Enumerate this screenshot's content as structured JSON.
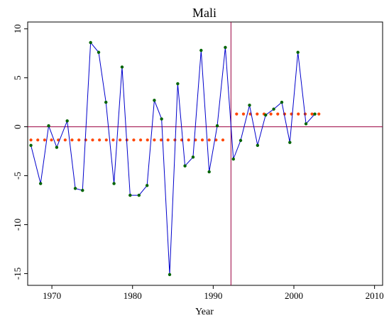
{
  "chart_data": {
    "type": "line",
    "title": "Mali",
    "xlabel": "Year",
    "ylabel": "",
    "xlim": [
      1967,
      2011
    ],
    "ylim": [
      -16.2,
      10.7
    ],
    "x_ticks": [
      1970,
      1980,
      1990,
      2000,
      2010
    ],
    "y_ticks": [
      10,
      5,
      0,
      -5,
      -10,
      -15
    ],
    "x_tick_labels": [
      "1970",
      "1980",
      "1990",
      "2000",
      "2010"
    ],
    "y_tick_labels": [
      "10",
      "5",
      "0",
      "-5",
      "-10",
      "-15"
    ],
    "grid": false,
    "reference_lines": {
      "y": 0,
      "x": 1992.2
    },
    "colors": {
      "series_line": "#0000cc",
      "series_points": "#006400",
      "reference_lines": "#9b0040",
      "segment_means": "#ff4500"
    },
    "series": [
      {
        "style": "line+points",
        "x": [
          1967.4,
          1968.6,
          1969.6,
          1970.6,
          1971.9,
          1972.9,
          1973.8,
          1974.8,
          1975.8,
          1976.7,
          1977.7,
          1978.7,
          1979.7,
          1980.8,
          1981.8,
          1982.7,
          1983.6,
          1984.6,
          1985.6,
          1986.5,
          1987.5,
          1988.5,
          1989.5,
          1990.5,
          1991.5,
          1992.5,
          1993.4,
          1994.5,
          1995.5,
          1996.5,
          1997.5,
          1998.5,
          1999.5,
          2000.5,
          2001.5,
          2002.6
        ],
        "y": [
          -1.9,
          -5.8,
          0.1,
          -2.1,
          0.6,
          -6.3,
          -6.5,
          8.6,
          7.6,
          2.5,
          -5.8,
          6.1,
          -7.0,
          -7.0,
          -6.0,
          2.7,
          0.8,
          -15.1,
          4.4,
          -4.0,
          -3.1,
          7.8,
          -4.6,
          0.1,
          8.1,
          -3.3,
          -1.4,
          2.2,
          -1.9,
          1.2,
          1.8,
          2.5,
          -1.6,
          7.6,
          0.3,
          1.3
        ]
      },
      {
        "style": "dotted",
        "x": [
          1967.4,
          1991.2
        ],
        "y": [
          -1.35,
          -1.35
        ]
      },
      {
        "style": "dotted",
        "x": [
          1992.9,
          2003.1
        ],
        "y": [
          1.3,
          1.3
        ]
      }
    ]
  }
}
